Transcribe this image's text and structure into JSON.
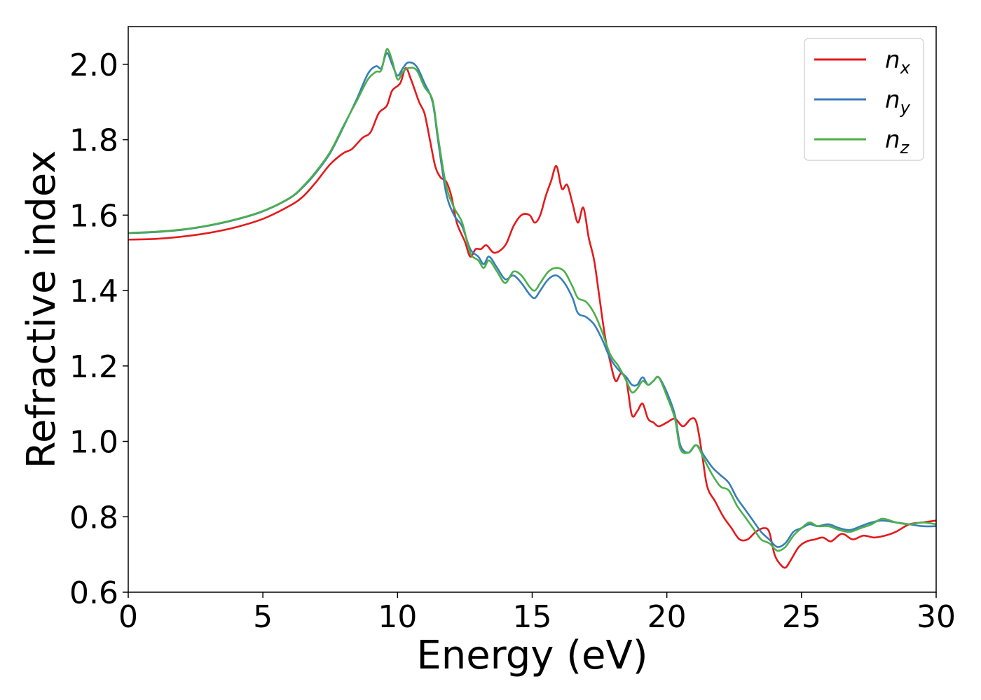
{
  "chart_data": {
    "type": "line",
    "xlabel": "Energy (eV)",
    "ylabel": "Refractive index",
    "xlim": [
      0,
      30
    ],
    "ylim": [
      0.6,
      2.1
    ],
    "xticks": [
      0,
      5,
      10,
      15,
      20,
      25,
      30
    ],
    "xtick_labels": [
      "0",
      "5",
      "10",
      "15",
      "20",
      "25",
      "30"
    ],
    "yticks": [
      0.6,
      0.8,
      1.0,
      1.2,
      1.4,
      1.6,
      1.8,
      2.0
    ],
    "ytick_labels": [
      "0.6",
      "0.8",
      "1.0",
      "1.2",
      "1.4",
      "1.6",
      "1.8",
      "2.0"
    ],
    "grid": false,
    "legend_position": "top-right",
    "series": [
      {
        "name": "n_x",
        "base": "n",
        "sub": "x",
        "color": "#e41a1c",
        "points": [
          [
            0,
            1.535
          ],
          [
            1,
            1.537
          ],
          [
            2,
            1.543
          ],
          [
            3,
            1.553
          ],
          [
            4,
            1.568
          ],
          [
            5,
            1.59
          ],
          [
            6,
            1.625
          ],
          [
            6.5,
            1.65
          ],
          [
            7,
            1.69
          ],
          [
            7.5,
            1.735
          ],
          [
            8,
            1.765
          ],
          [
            8.3,
            1.775
          ],
          [
            8.7,
            1.805
          ],
          [
            9,
            1.82
          ],
          [
            9.3,
            1.87
          ],
          [
            9.6,
            1.89
          ],
          [
            9.8,
            1.93
          ],
          [
            10.1,
            1.95
          ],
          [
            10.3,
            1.99
          ],
          [
            10.5,
            1.96
          ],
          [
            10.8,
            1.9
          ],
          [
            11,
            1.87
          ],
          [
            11.2,
            1.8
          ],
          [
            11.4,
            1.73
          ],
          [
            11.6,
            1.7
          ],
          [
            11.8,
            1.69
          ],
          [
            12,
            1.65
          ],
          [
            12.2,
            1.58
          ],
          [
            12.5,
            1.53
          ],
          [
            12.7,
            1.49
          ],
          [
            12.9,
            1.51
          ],
          [
            13.1,
            1.51
          ],
          [
            13.3,
            1.52
          ],
          [
            13.6,
            1.5
          ],
          [
            14,
            1.52
          ],
          [
            14.3,
            1.57
          ],
          [
            14.6,
            1.6
          ],
          [
            14.9,
            1.6
          ],
          [
            15.1,
            1.58
          ],
          [
            15.3,
            1.6
          ],
          [
            15.5,
            1.65
          ],
          [
            15.7,
            1.69
          ],
          [
            15.9,
            1.73
          ],
          [
            16.1,
            1.67
          ],
          [
            16.3,
            1.68
          ],
          [
            16.5,
            1.63
          ],
          [
            16.7,
            1.58
          ],
          [
            16.9,
            1.62
          ],
          [
            17.1,
            1.54
          ],
          [
            17.3,
            1.48
          ],
          [
            17.5,
            1.38
          ],
          [
            17.7,
            1.28
          ],
          [
            17.9,
            1.21
          ],
          [
            18.1,
            1.16
          ],
          [
            18.3,
            1.18
          ],
          [
            18.5,
            1.16
          ],
          [
            18.7,
            1.07
          ],
          [
            18.9,
            1.08
          ],
          [
            19.1,
            1.1
          ],
          [
            19.3,
            1.06
          ],
          [
            19.5,
            1.05
          ],
          [
            19.7,
            1.04
          ],
          [
            20,
            1.05
          ],
          [
            20.3,
            1.06
          ],
          [
            20.6,
            1.04
          ],
          [
            20.9,
            1.06
          ],
          [
            21.1,
            1.05
          ],
          [
            21.3,
            0.97
          ],
          [
            21.5,
            0.88
          ],
          [
            21.8,
            0.84
          ],
          [
            22.1,
            0.8
          ],
          [
            22.4,
            0.77
          ],
          [
            22.7,
            0.74
          ],
          [
            23,
            0.74
          ],
          [
            23.3,
            0.76
          ],
          [
            23.6,
            0.77
          ],
          [
            23.8,
            0.76
          ],
          [
            24,
            0.7
          ],
          [
            24.2,
            0.675
          ],
          [
            24.4,
            0.665
          ],
          [
            24.6,
            0.685
          ],
          [
            24.9,
            0.72
          ],
          [
            25.2,
            0.735
          ],
          [
            25.5,
            0.74
          ],
          [
            25.8,
            0.745
          ],
          [
            26.1,
            0.735
          ],
          [
            26.5,
            0.755
          ],
          [
            26.9,
            0.74
          ],
          [
            27.3,
            0.75
          ],
          [
            27.7,
            0.745
          ],
          [
            28.1,
            0.75
          ],
          [
            28.5,
            0.76
          ],
          [
            29,
            0.78
          ],
          [
            29.5,
            0.785
          ],
          [
            30,
            0.79
          ]
        ]
      },
      {
        "name": "n_y",
        "base": "n",
        "sub": "y",
        "color": "#377eb8",
        "points": [
          [
            0,
            1.552
          ],
          [
            1,
            1.555
          ],
          [
            2,
            1.561
          ],
          [
            3,
            1.572
          ],
          [
            4,
            1.588
          ],
          [
            5,
            1.61
          ],
          [
            6,
            1.645
          ],
          [
            6.5,
            1.675
          ],
          [
            7,
            1.715
          ],
          [
            7.5,
            1.765
          ],
          [
            8,
            1.835
          ],
          [
            8.5,
            1.91
          ],
          [
            8.9,
            1.975
          ],
          [
            9.2,
            1.995
          ],
          [
            9.4,
            1.99
          ],
          [
            9.6,
            2.03
          ],
          [
            9.8,
            2.0
          ],
          [
            10,
            1.97
          ],
          [
            10.2,
            1.99
          ],
          [
            10.4,
            2.005
          ],
          [
            10.7,
            1.995
          ],
          [
            11,
            1.95
          ],
          [
            11.3,
            1.9
          ],
          [
            11.5,
            1.8
          ],
          [
            11.8,
            1.66
          ],
          [
            12.1,
            1.6
          ],
          [
            12.4,
            1.57
          ],
          [
            12.7,
            1.51
          ],
          [
            13,
            1.49
          ],
          [
            13.2,
            1.47
          ],
          [
            13.4,
            1.49
          ],
          [
            13.7,
            1.46
          ],
          [
            14,
            1.43
          ],
          [
            14.3,
            1.44
          ],
          [
            14.6,
            1.42
          ],
          [
            14.9,
            1.39
          ],
          [
            15.1,
            1.38
          ],
          [
            15.3,
            1.4
          ],
          [
            15.6,
            1.43
          ],
          [
            15.9,
            1.44
          ],
          [
            16.2,
            1.42
          ],
          [
            16.5,
            1.38
          ],
          [
            16.7,
            1.34
          ],
          [
            17,
            1.33
          ],
          [
            17.3,
            1.31
          ],
          [
            17.6,
            1.27
          ],
          [
            17.9,
            1.22
          ],
          [
            18.2,
            1.19
          ],
          [
            18.5,
            1.17
          ],
          [
            18.7,
            1.15
          ],
          [
            18.9,
            1.15
          ],
          [
            19.1,
            1.17
          ],
          [
            19.3,
            1.15
          ],
          [
            19.5,
            1.16
          ],
          [
            19.7,
            1.17
          ],
          [
            20,
            1.13
          ],
          [
            20.3,
            1.07
          ],
          [
            20.5,
            0.99
          ],
          [
            20.8,
            0.97
          ],
          [
            21.1,
            0.99
          ],
          [
            21.4,
            0.96
          ],
          [
            21.7,
            0.93
          ],
          [
            22,
            0.91
          ],
          [
            22.3,
            0.89
          ],
          [
            22.6,
            0.85
          ],
          [
            22.9,
            0.82
          ],
          [
            23.2,
            0.79
          ],
          [
            23.5,
            0.76
          ],
          [
            23.8,
            0.74
          ],
          [
            24.1,
            0.72
          ],
          [
            24.4,
            0.73
          ],
          [
            24.7,
            0.76
          ],
          [
            25,
            0.77
          ],
          [
            25.3,
            0.78
          ],
          [
            25.6,
            0.775
          ],
          [
            26,
            0.78
          ],
          [
            26.4,
            0.77
          ],
          [
            26.8,
            0.765
          ],
          [
            27.2,
            0.775
          ],
          [
            27.6,
            0.785
          ],
          [
            28,
            0.79
          ],
          [
            28.5,
            0.785
          ],
          [
            29,
            0.78
          ],
          [
            29.5,
            0.775
          ],
          [
            30,
            0.775
          ]
        ]
      },
      {
        "name": "n_z",
        "base": "n",
        "sub": "z",
        "color": "#4daf4a",
        "points": [
          [
            0,
            1.553
          ],
          [
            1,
            1.556
          ],
          [
            2,
            1.562
          ],
          [
            3,
            1.573
          ],
          [
            4,
            1.589
          ],
          [
            5,
            1.611
          ],
          [
            6,
            1.646
          ],
          [
            6.5,
            1.677
          ],
          [
            7,
            1.718
          ],
          [
            7.5,
            1.768
          ],
          [
            8,
            1.838
          ],
          [
            8.5,
            1.905
          ],
          [
            8.9,
            1.96
          ],
          [
            9.2,
            1.98
          ],
          [
            9.4,
            1.985
          ],
          [
            9.6,
            2.04
          ],
          [
            9.8,
            2.01
          ],
          [
            10,
            1.96
          ],
          [
            10.2,
            1.98
          ],
          [
            10.4,
            1.99
          ],
          [
            10.7,
            1.985
          ],
          [
            11,
            1.94
          ],
          [
            11.3,
            1.905
          ],
          [
            11.5,
            1.81
          ],
          [
            11.8,
            1.68
          ],
          [
            12.1,
            1.62
          ],
          [
            12.4,
            1.58
          ],
          [
            12.7,
            1.5
          ],
          [
            13,
            1.48
          ],
          [
            13.2,
            1.46
          ],
          [
            13.4,
            1.48
          ],
          [
            13.7,
            1.45
          ],
          [
            14,
            1.42
          ],
          [
            14.3,
            1.45
          ],
          [
            14.6,
            1.44
          ],
          [
            14.9,
            1.41
          ],
          [
            15.1,
            1.4
          ],
          [
            15.3,
            1.42
          ],
          [
            15.6,
            1.45
          ],
          [
            15.9,
            1.46
          ],
          [
            16.2,
            1.45
          ],
          [
            16.5,
            1.41
          ],
          [
            16.7,
            1.38
          ],
          [
            17,
            1.37
          ],
          [
            17.3,
            1.34
          ],
          [
            17.6,
            1.29
          ],
          [
            17.9,
            1.23
          ],
          [
            18.2,
            1.2
          ],
          [
            18.5,
            1.16
          ],
          [
            18.7,
            1.13
          ],
          [
            18.9,
            1.14
          ],
          [
            19.1,
            1.16
          ],
          [
            19.3,
            1.15
          ],
          [
            19.5,
            1.16
          ],
          [
            19.7,
            1.17
          ],
          [
            20,
            1.12
          ],
          [
            20.3,
            1.06
          ],
          [
            20.5,
            0.98
          ],
          [
            20.8,
            0.97
          ],
          [
            21.1,
            0.99
          ],
          [
            21.4,
            0.95
          ],
          [
            21.7,
            0.91
          ],
          [
            22,
            0.88
          ],
          [
            22.3,
            0.87
          ],
          [
            22.6,
            0.83
          ],
          [
            22.9,
            0.8
          ],
          [
            23.2,
            0.77
          ],
          [
            23.5,
            0.74
          ],
          [
            23.8,
            0.73
          ],
          [
            24.1,
            0.71
          ],
          [
            24.4,
            0.72
          ],
          [
            24.7,
            0.75
          ],
          [
            25,
            0.77
          ],
          [
            25.3,
            0.785
          ],
          [
            25.6,
            0.775
          ],
          [
            26,
            0.775
          ],
          [
            26.4,
            0.765
          ],
          [
            26.8,
            0.76
          ],
          [
            27.2,
            0.77
          ],
          [
            27.6,
            0.78
          ],
          [
            28,
            0.795
          ],
          [
            28.5,
            0.785
          ],
          [
            29,
            0.78
          ],
          [
            29.5,
            0.785
          ],
          [
            30,
            0.78
          ]
        ]
      }
    ]
  }
}
